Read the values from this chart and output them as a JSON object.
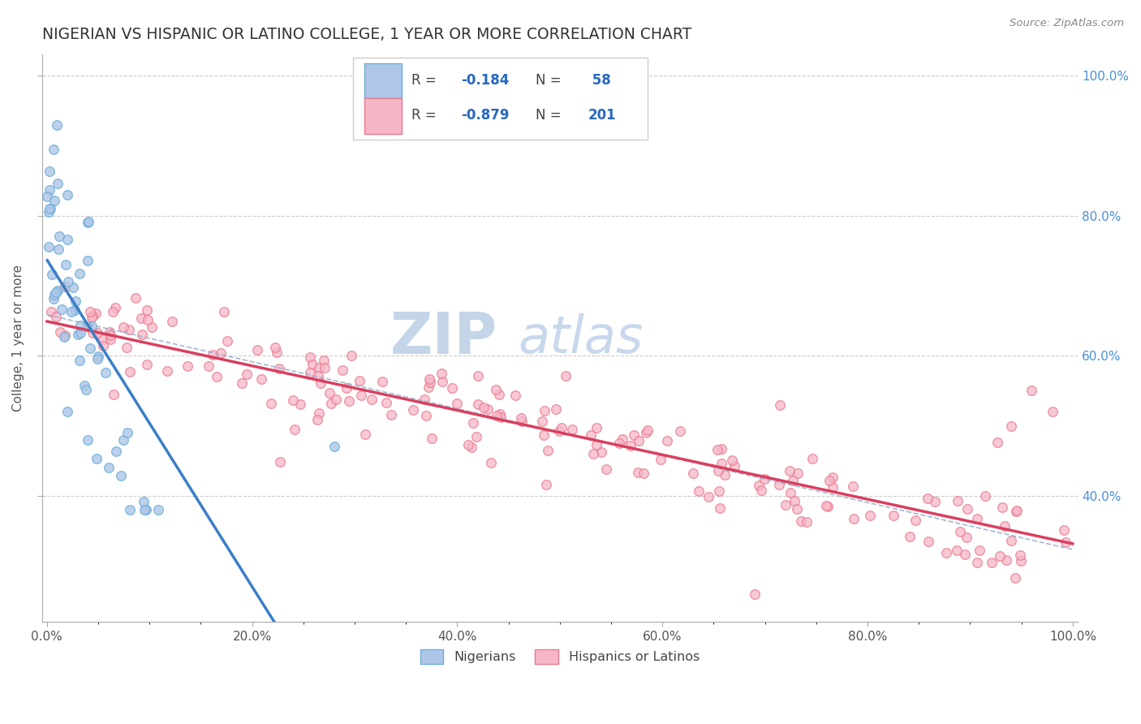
{
  "title": "NIGERIAN VS HISPANIC OR LATINO COLLEGE, 1 YEAR OR MORE CORRELATION CHART",
  "source": "Source: ZipAtlas.com",
  "ylabel": "College, 1 year or more",
  "xtick_labels": [
    "0.0%",
    "",
    "",
    "",
    "",
    "",
    "",
    "",
    "20.0%",
    "",
    "",
    "",
    "",
    "",
    "",
    "",
    "40.0%",
    "",
    "",
    "",
    "",
    "",
    "",
    "",
    "60.0%",
    "",
    "",
    "",
    "",
    "",
    "",
    "",
    "80.0%",
    "",
    "",
    "",
    "",
    "",
    "",
    "",
    "100.0%"
  ],
  "ytick_right_labels": [
    "40.0%",
    "60.0%",
    "80.0%",
    "100.0%"
  ],
  "color_nigerian_fill": "#aec6e8",
  "color_nigerian_edge": "#6baed6",
  "color_hispanic_fill": "#f7b6c8",
  "color_hispanic_edge": "#e8798a",
  "color_line_nigerian": "#3a7ec8",
  "color_line_hispanic": "#d94060",
  "color_line_combined": "#9bb0cc",
  "watermark_zip": "ZIP",
  "watermark_atlas": "atlas",
  "legend_r1_label": "R = ",
  "legend_r1_val": "-0.184",
  "legend_n1_label": "N = ",
  "legend_n1_val": " 58",
  "legend_r2_label": "R = ",
  "legend_r2_val": "-0.879",
  "legend_n2_label": "N = ",
  "legend_n2_val": "201",
  "nig_seed": 42,
  "his_seed": 99
}
